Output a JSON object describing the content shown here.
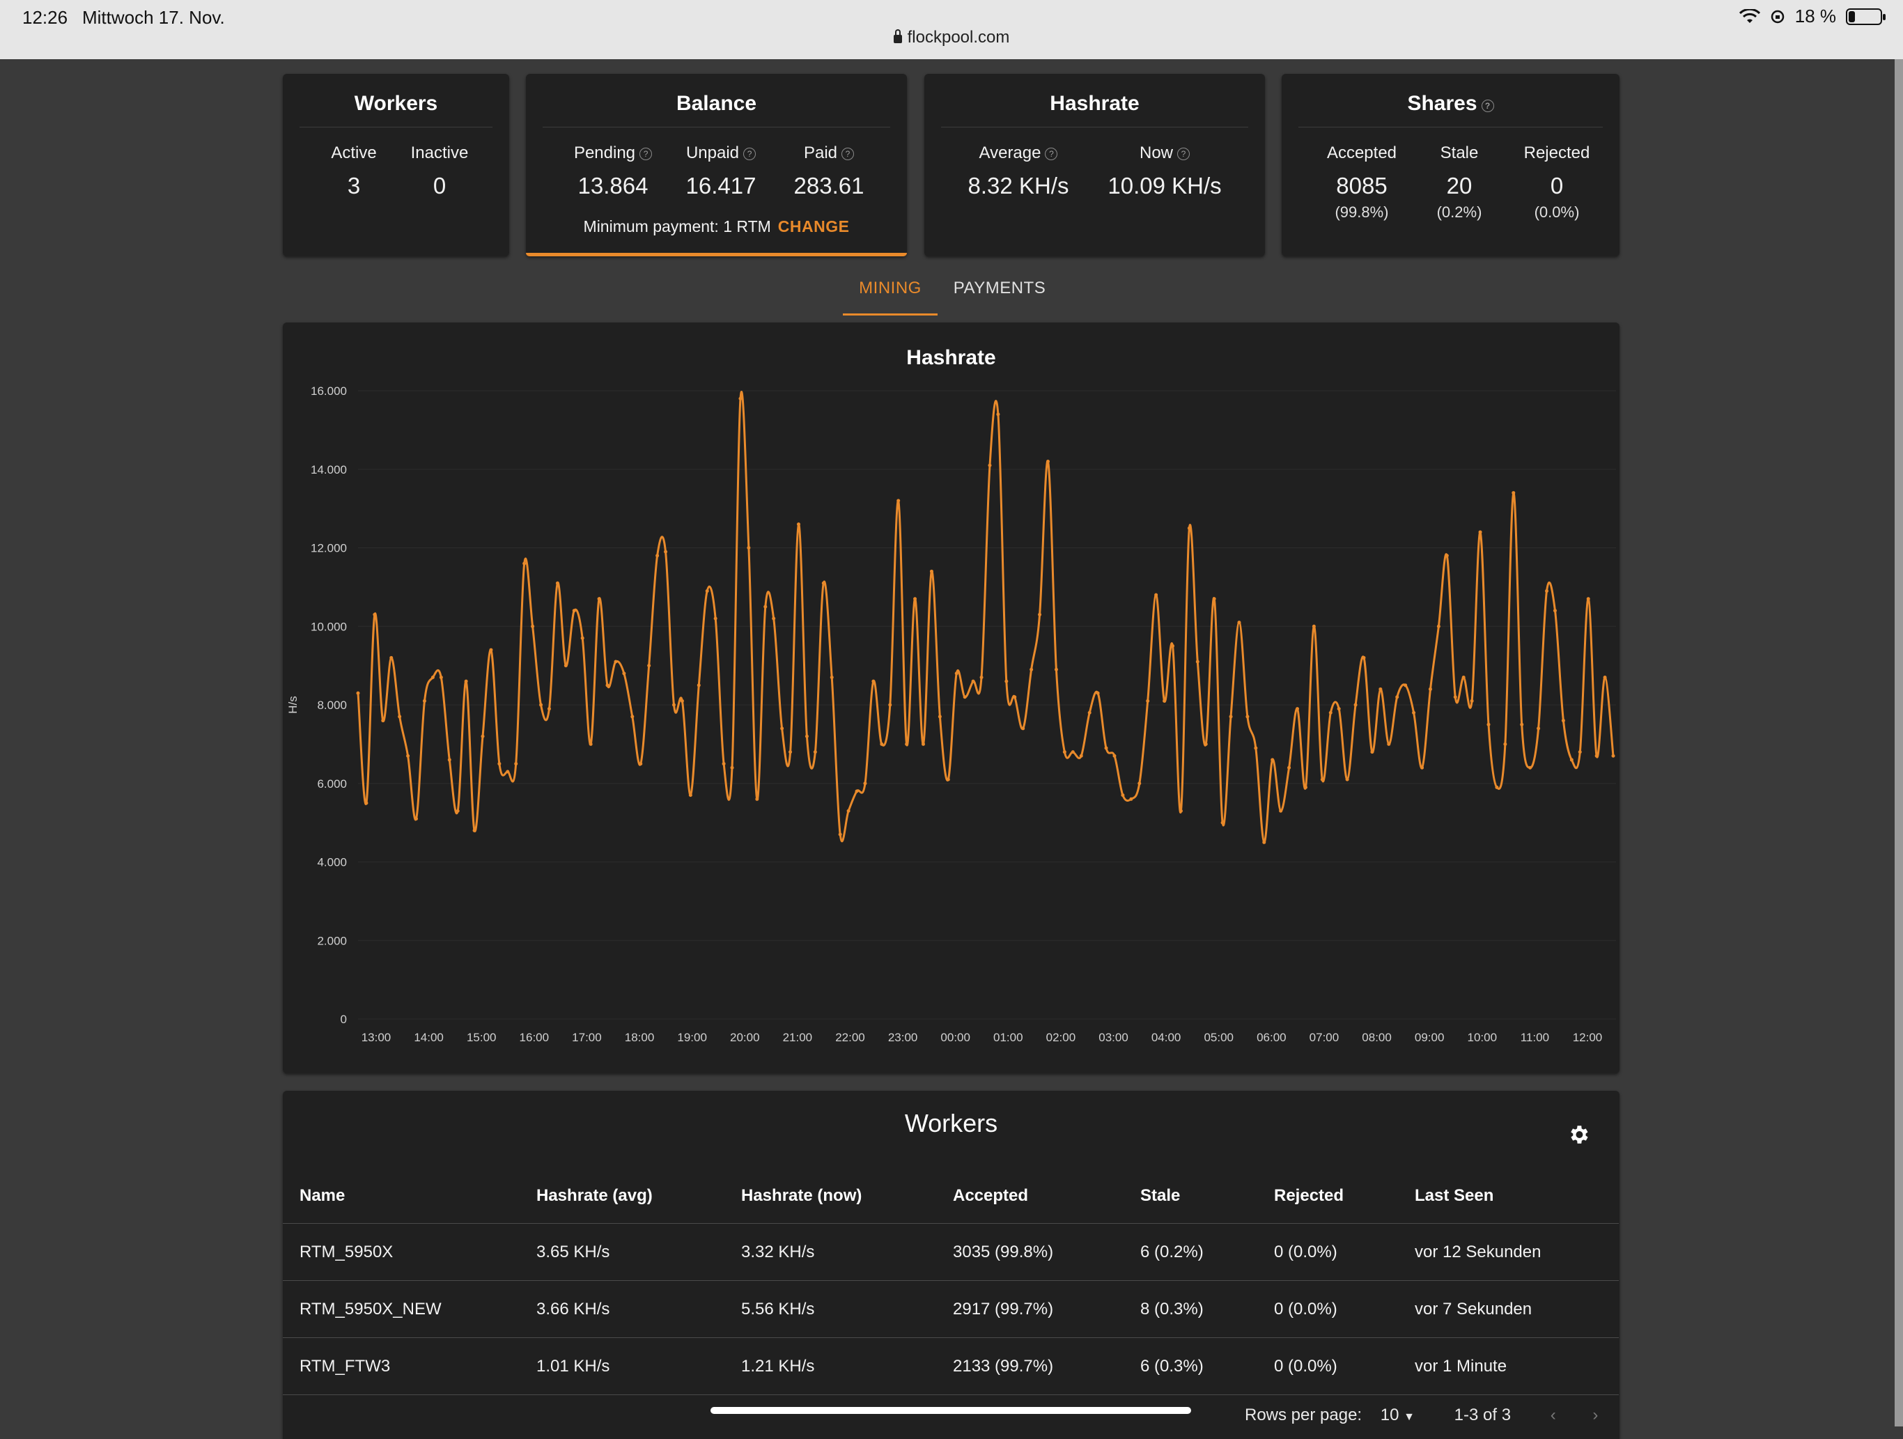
{
  "status_bar": {
    "time": "12:26",
    "date": "Mittwoch 17. Nov.",
    "battery": "18 %",
    "url": "flockpool.com"
  },
  "workers_card": {
    "title": "Workers",
    "active_label": "Active",
    "active_value": "3",
    "inactive_label": "Inactive",
    "inactive_value": "0"
  },
  "balance_card": {
    "title": "Balance",
    "pending_label": "Pending",
    "pending_value": "13.864",
    "unpaid_label": "Unpaid",
    "unpaid_value": "16.417",
    "paid_label": "Paid",
    "paid_value": "283.61",
    "min_payment": "Minimum payment: 1 RTM",
    "change_label": "CHANGE"
  },
  "hashrate_card": {
    "title": "Hashrate",
    "average_label": "Average",
    "average_value": "8.32 KH/s",
    "now_label": "Now",
    "now_value": "10.09 KH/s"
  },
  "shares_card": {
    "title": "Shares",
    "accepted_label": "Accepted",
    "accepted_value": "8085",
    "accepted_pct": "(99.8%)",
    "stale_label": "Stale",
    "stale_value": "20",
    "stale_pct": "(0.2%)",
    "rejected_label": "Rejected",
    "rejected_value": "0",
    "rejected_pct": "(0.0%)"
  },
  "tabs": [
    {
      "label": "MINING",
      "active": true
    },
    {
      "label": "PAYMENTS",
      "active": false
    }
  ],
  "chart_data": {
    "type": "line",
    "title": "Hashrate",
    "ylabel": "H/s",
    "xlabel": "",
    "ylim": [
      0,
      16000
    ],
    "yticks": [
      "0",
      "2.000",
      "4.000",
      "6.000",
      "8.000",
      "10.000",
      "12.000",
      "14.000",
      "16.000"
    ],
    "xticks": [
      "13:00",
      "14:00",
      "15:00",
      "16:00",
      "17:00",
      "18:00",
      "19:00",
      "20:00",
      "21:00",
      "22:00",
      "23:00",
      "00:00",
      "01:00",
      "02:00",
      "03:00",
      "04:00",
      "05:00",
      "06:00",
      "07:00",
      "08:00",
      "09:00",
      "10:00",
      "11:00",
      "12:00"
    ],
    "series": [
      {
        "color": "#e98a2b",
        "values": [
          8300,
          5500,
          10300,
          7600,
          9200,
          7700,
          6700,
          5100,
          8100,
          8700,
          8700,
          6600,
          5300,
          8600,
          4800,
          7200,
          9400,
          6500,
          6300,
          6500,
          11600,
          10000,
          8000,
          7900,
          11100,
          9000,
          10400,
          9700,
          7000,
          10700,
          8500,
          9100,
          8800,
          7700,
          6500,
          9000,
          11800,
          11900,
          8000,
          8100,
          5700,
          8500,
          10900,
          10200,
          6500,
          6400,
          15800,
          12000,
          5600,
          10500,
          10200,
          7400,
          6800,
          12600,
          7200,
          6800,
          11100,
          8700,
          4700,
          5300,
          5800,
          6000,
          8600,
          7000,
          8000,
          13200,
          7000,
          10700,
          7000,
          11400,
          7700,
          6100,
          8800,
          8200,
          8600,
          8700,
          14100,
          15400,
          8600,
          8200,
          7400,
          8900,
          10300,
          14200,
          8900,
          6800,
          6800,
          6700,
          7800,
          8300,
          6900,
          6700,
          5700,
          5600,
          6000,
          8100,
          10800,
          8100,
          9500,
          5300,
          12500,
          9100,
          7000,
          10700,
          5000,
          7700,
          10100,
          7700,
          6900,
          4500,
          6600,
          5300,
          6400,
          7900,
          5900,
          10000,
          6100,
          7800,
          7900,
          6100,
          8000,
          9200,
          6800,
          8400,
          7000,
          8200,
          8500,
          7800,
          6400,
          8400,
          10000,
          11800,
          8200,
          8700,
          8100,
          12400,
          7500,
          5900,
          7000,
          13400,
          7500,
          6400,
          7400,
          10900,
          10400,
          7600,
          6600,
          6800,
          10700,
          6700,
          8700,
          6700
        ]
      }
    ]
  },
  "workers_table": {
    "title": "Workers",
    "headers": [
      "Name",
      "Hashrate (avg)",
      "Hashrate (now)",
      "Accepted",
      "Stale",
      "Rejected",
      "Last Seen"
    ],
    "rows": [
      [
        "RTM_5950X",
        "3.65 KH/s",
        "3.32 KH/s",
        "3035 (99.8%)",
        "6 (0.2%)",
        "0 (0.0%)",
        "vor 12 Sekunden"
      ],
      [
        "RTM_5950X_NEW",
        "3.66 KH/s",
        "5.56 KH/s",
        "2917 (99.7%)",
        "8 (0.3%)",
        "0 (0.0%)",
        "vor 7 Sekunden"
      ],
      [
        "RTM_FTW3",
        "1.01 KH/s",
        "1.21 KH/s",
        "2133 (99.7%)",
        "6 (0.3%)",
        "0 (0.0%)",
        "vor 1 Minute"
      ]
    ],
    "rows_per_page_label": "Rows per page:",
    "rows_per_page_value": "10",
    "range": "1-3 of 3"
  }
}
